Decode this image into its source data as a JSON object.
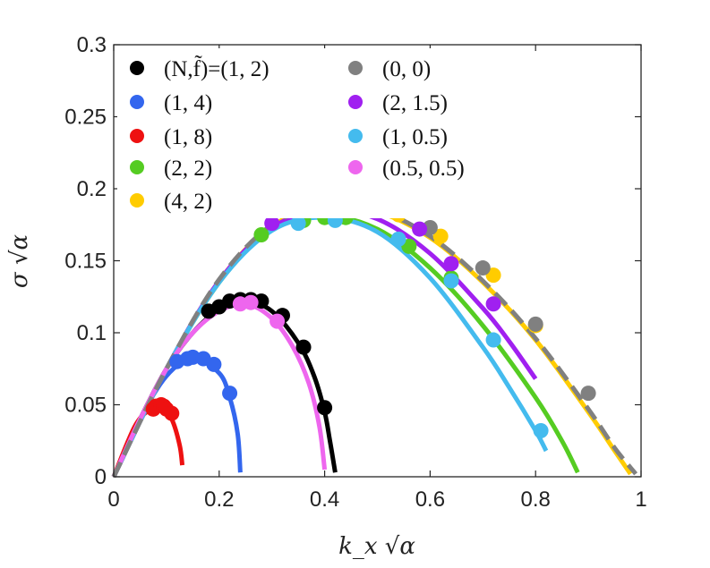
{
  "chart_data": {
    "type": "line",
    "xlabel": "k_x √α",
    "ylabel": "σ √α",
    "xlim": [
      0,
      1
    ],
    "ylim": [
      0,
      0.3
    ],
    "xticks": [
      "0",
      "0.2",
      "0.4",
      "0.6",
      "0.8",
      "1"
    ],
    "yticks": [
      "0",
      "0.05",
      "0.1",
      "0.15",
      "0.2",
      "0.25",
      "0.3"
    ],
    "legend_header": "(N,f̃)=",
    "legend_position": "top-left",
    "series": [
      {
        "name": "(1, 2)",
        "label": "(N,f̃)=(1, 2)",
        "color": "#000000",
        "dashed": false,
        "curve": {
          "x": [
            0,
            0.05,
            0.1,
            0.15,
            0.2,
            0.25,
            0.3,
            0.35,
            0.38,
            0.4,
            0.41,
            0.42
          ],
          "y": [
            0,
            0.04,
            0.075,
            0.1,
            0.116,
            0.122,
            0.115,
            0.093,
            0.07,
            0.045,
            0.025,
            0.003
          ]
        },
        "points": {
          "x": [
            0.18,
            0.2,
            0.22,
            0.24,
            0.26,
            0.28,
            0.32,
            0.36,
            0.4
          ],
          "y": [
            0.115,
            0.118,
            0.122,
            0.123,
            0.123,
            0.122,
            0.112,
            0.09,
            0.048
          ]
        }
      },
      {
        "name": "(1, 4)",
        "label": "(1, 4)",
        "color": "#3366ee",
        "dashed": false,
        "curve": {
          "x": [
            0,
            0.05,
            0.1,
            0.15,
            0.2,
            0.22,
            0.235,
            0.24
          ],
          "y": [
            0,
            0.04,
            0.07,
            0.082,
            0.072,
            0.055,
            0.03,
            0.003
          ]
        },
        "points": {
          "x": [
            0.12,
            0.14,
            0.15,
            0.17,
            0.19,
            0.22
          ],
          "y": [
            0.08,
            0.082,
            0.083,
            0.082,
            0.078,
            0.058
          ]
        }
      },
      {
        "name": "(1, 8)",
        "label": "(1, 8)",
        "color": "#ee1111",
        "dashed": false,
        "curve": {
          "x": [
            0,
            0.04,
            0.07,
            0.09,
            0.11,
            0.125,
            0.13
          ],
          "y": [
            0,
            0.035,
            0.047,
            0.049,
            0.04,
            0.022,
            0.008
          ]
        },
        "points": {
          "x": [
            0.075,
            0.08,
            0.09,
            0.095,
            0.1,
            0.11
          ],
          "y": [
            0.047,
            0.049,
            0.05,
            0.049,
            0.047,
            0.044
          ]
        }
      },
      {
        "name": "(2, 2)",
        "label": "(2, 2)",
        "color": "#55cc22",
        "dashed": false,
        "curve": {
          "x": [
            0,
            0.1,
            0.2,
            0.3,
            0.4,
            0.5,
            0.6,
            0.7,
            0.8,
            0.85,
            0.88
          ],
          "y": [
            0,
            0.075,
            0.135,
            0.172,
            0.181,
            0.172,
            0.145,
            0.105,
            0.055,
            0.025,
            0.003
          ]
        },
        "points": {
          "x": [
            0.28,
            0.36,
            0.4,
            0.44,
            0.56,
            0.64
          ],
          "y": [
            0.168,
            0.178,
            0.18,
            0.18,
            0.16,
            0.138
          ]
        }
      },
      {
        "name": "(4, 2)",
        "label": "(4, 2)",
        "color": "#ffcc00",
        "dashed": false,
        "curve": {
          "x": [
            0,
            0.1,
            0.2,
            0.3,
            0.4,
            0.5,
            0.6,
            0.7,
            0.8,
            0.9,
            0.95,
            0.98
          ],
          "y": [
            0,
            0.075,
            0.136,
            0.174,
            0.187,
            0.184,
            0.166,
            0.135,
            0.095,
            0.045,
            0.018,
            0.002
          ]
        },
        "points": {
          "x": [
            0.38,
            0.42,
            0.45,
            0.54,
            0.62,
            0.72,
            0.8
          ],
          "y": [
            0.187,
            0.188,
            0.188,
            0.182,
            0.167,
            0.14,
            0.105
          ]
        }
      },
      {
        "name": "(0, 0)",
        "label": "(0, 0)",
        "color": "#808080",
        "dashed": true,
        "curve": {
          "x": [
            0,
            0.1,
            0.2,
            0.3,
            0.4,
            0.5,
            0.6,
            0.7,
            0.8,
            0.9,
            0.95,
            0.99
          ],
          "y": [
            0,
            0.075,
            0.137,
            0.175,
            0.188,
            0.185,
            0.167,
            0.136,
            0.096,
            0.047,
            0.02,
            0.002
          ]
        },
        "points": {
          "x": [
            0.4,
            0.5,
            0.6,
            0.7,
            0.8,
            0.9
          ],
          "y": [
            0.188,
            0.186,
            0.173,
            0.145,
            0.106,
            0.058
          ]
        }
      },
      {
        "name": "(2, 1.5)",
        "label": "(2, 1.5)",
        "color": "#a020f0",
        "dashed": false,
        "curve": {
          "x": [
            0,
            0.1,
            0.2,
            0.3,
            0.4,
            0.5,
            0.6,
            0.7,
            0.75,
            0.8
          ],
          "y": [
            0,
            0.075,
            0.136,
            0.173,
            0.185,
            0.179,
            0.155,
            0.117,
            0.094,
            0.068
          ]
        },
        "points": {
          "x": [
            0.3,
            0.58,
            0.64,
            0.72
          ],
          "y": [
            0.176,
            0.172,
            0.148,
            0.12
          ]
        }
      },
      {
        "name": "(1, 0.5)",
        "label": "(1, 0.5)",
        "color": "#44bbee",
        "dashed": false,
        "curve": {
          "x": [
            0,
            0.1,
            0.2,
            0.3,
            0.4,
            0.5,
            0.6,
            0.7,
            0.75,
            0.8,
            0.82
          ],
          "y": [
            0,
            0.075,
            0.135,
            0.171,
            0.18,
            0.17,
            0.138,
            0.09,
            0.062,
            0.032,
            0.018
          ]
        },
        "points": {
          "x": [
            0.35,
            0.42,
            0.54,
            0.64,
            0.72,
            0.81
          ],
          "y": [
            0.176,
            0.178,
            0.165,
            0.136,
            0.095,
            0.032
          ]
        }
      },
      {
        "name": "(0.5, 0.5)",
        "label": "(0.5, 0.5)",
        "color": "#ee66ee",
        "dashed": false,
        "curve": {
          "x": [
            0,
            0.05,
            0.1,
            0.15,
            0.2,
            0.25,
            0.3,
            0.34,
            0.37,
            0.39,
            0.4
          ],
          "y": [
            0,
            0.04,
            0.075,
            0.1,
            0.115,
            0.12,
            0.11,
            0.09,
            0.065,
            0.035,
            0.005
          ]
        },
        "points": {
          "x": [
            0.24,
            0.26,
            0.31
          ],
          "y": [
            0.12,
            0.121,
            0.108
          ]
        }
      }
    ]
  }
}
